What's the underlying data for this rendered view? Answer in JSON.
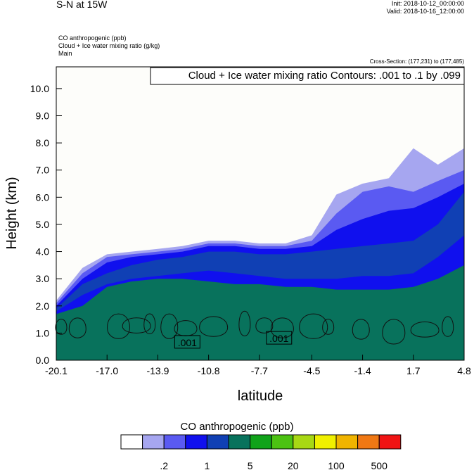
{
  "header": {
    "title": "S-N at 15W",
    "init": "Init: 2018-10-12_00:00:00",
    "valid": "Valid: 2018-10-16_12:00:00",
    "field1": "CO anthropogenic   (ppb)",
    "field2": "Cloud + Ice water mixing ratio   (g/kg)",
    "field3": "Main",
    "cross_section": "Cross-Section: (177,231) to (177,485)"
  },
  "chart_data": {
    "type": "heatmap",
    "contour_info": "Cloud + Ice water mixing ratio Contours: .001 to .1 by .099",
    "contour_labels": [
      ".001",
      ".001"
    ],
    "xlabel": "latitude",
    "ylabel": "Height (km)",
    "x_ticks": [
      "-20.1",
      "-17.0",
      "-13.9",
      "-10.8",
      "-7.7",
      "-4.5",
      "-1.4",
      "1.7",
      "4.8"
    ],
    "y_ticks": [
      "0.0",
      "1.0",
      "2.0",
      "3.0",
      "4.0",
      "5.0",
      "6.0",
      "7.0",
      "8.0",
      "9.0",
      "10.0"
    ],
    "xlim": [
      -20.1,
      4.8
    ],
    "ylim": [
      0,
      10.8
    ],
    "field_bands_top_km": {
      "x": [
        -20.1,
        -18.5,
        -17.0,
        -15.5,
        -13.9,
        -12.4,
        -10.8,
        -9.2,
        -7.7,
        -6.1,
        -4.5,
        -3.0,
        -1.4,
        0.2,
        1.7,
        3.2,
        4.8
      ],
      "ge_0.1": [
        2.2,
        3.4,
        3.9,
        4.0,
        4.1,
        4.2,
        4.4,
        4.4,
        4.3,
        4.3,
        4.6,
        6.1,
        6.5,
        6.7,
        7.8,
        7.2,
        7.8
      ],
      "ge_0.2": [
        2.1,
        3.2,
        3.8,
        3.9,
        4.0,
        4.1,
        4.3,
        4.3,
        4.2,
        4.2,
        4.4,
        5.4,
        6.2,
        6.4,
        6.2,
        6.6,
        7.0
      ],
      "ge_0.5": [
        2.0,
        3.0,
        3.6,
        3.8,
        3.9,
        4.0,
        4.2,
        4.2,
        4.1,
        4.1,
        4.2,
        4.8,
        5.2,
        5.5,
        5.6,
        6.0,
        6.5
      ],
      "ge_1": [
        1.9,
        2.8,
        3.2,
        3.5,
        3.7,
        3.8,
        4.0,
        4.0,
        3.9,
        3.9,
        4.0,
        4.1,
        4.2,
        4.3,
        4.4,
        5.0,
        6.2
      ],
      "ge_2": [
        1.8,
        2.4,
        2.8,
        3.0,
        3.1,
        3.2,
        3.3,
        3.2,
        3.1,
        3.0,
        3.0,
        3.0,
        3.1,
        3.1,
        3.2,
        3.8,
        4.6
      ],
      "ge_5": [
        1.7,
        2.0,
        2.7,
        2.9,
        3.0,
        3.0,
        2.9,
        2.8,
        2.8,
        2.7,
        2.7,
        2.6,
        2.6,
        2.6,
        2.7,
        3.0,
        3.5
      ]
    },
    "colorbar": {
      "title": "CO anthropogenic  (ppb)",
      "colors": [
        "#ffffff",
        "#a6a6f0",
        "#5a5af2",
        "#1010ee",
        "#1040b4",
        "#08725c",
        "#10a31a",
        "#4cc212",
        "#a8d814",
        "#f0f000",
        "#f0b400",
        "#f07814",
        "#f01414"
      ],
      "tick_labels": [
        ".2",
        "1",
        "5",
        "20",
        "100",
        "500"
      ]
    }
  }
}
